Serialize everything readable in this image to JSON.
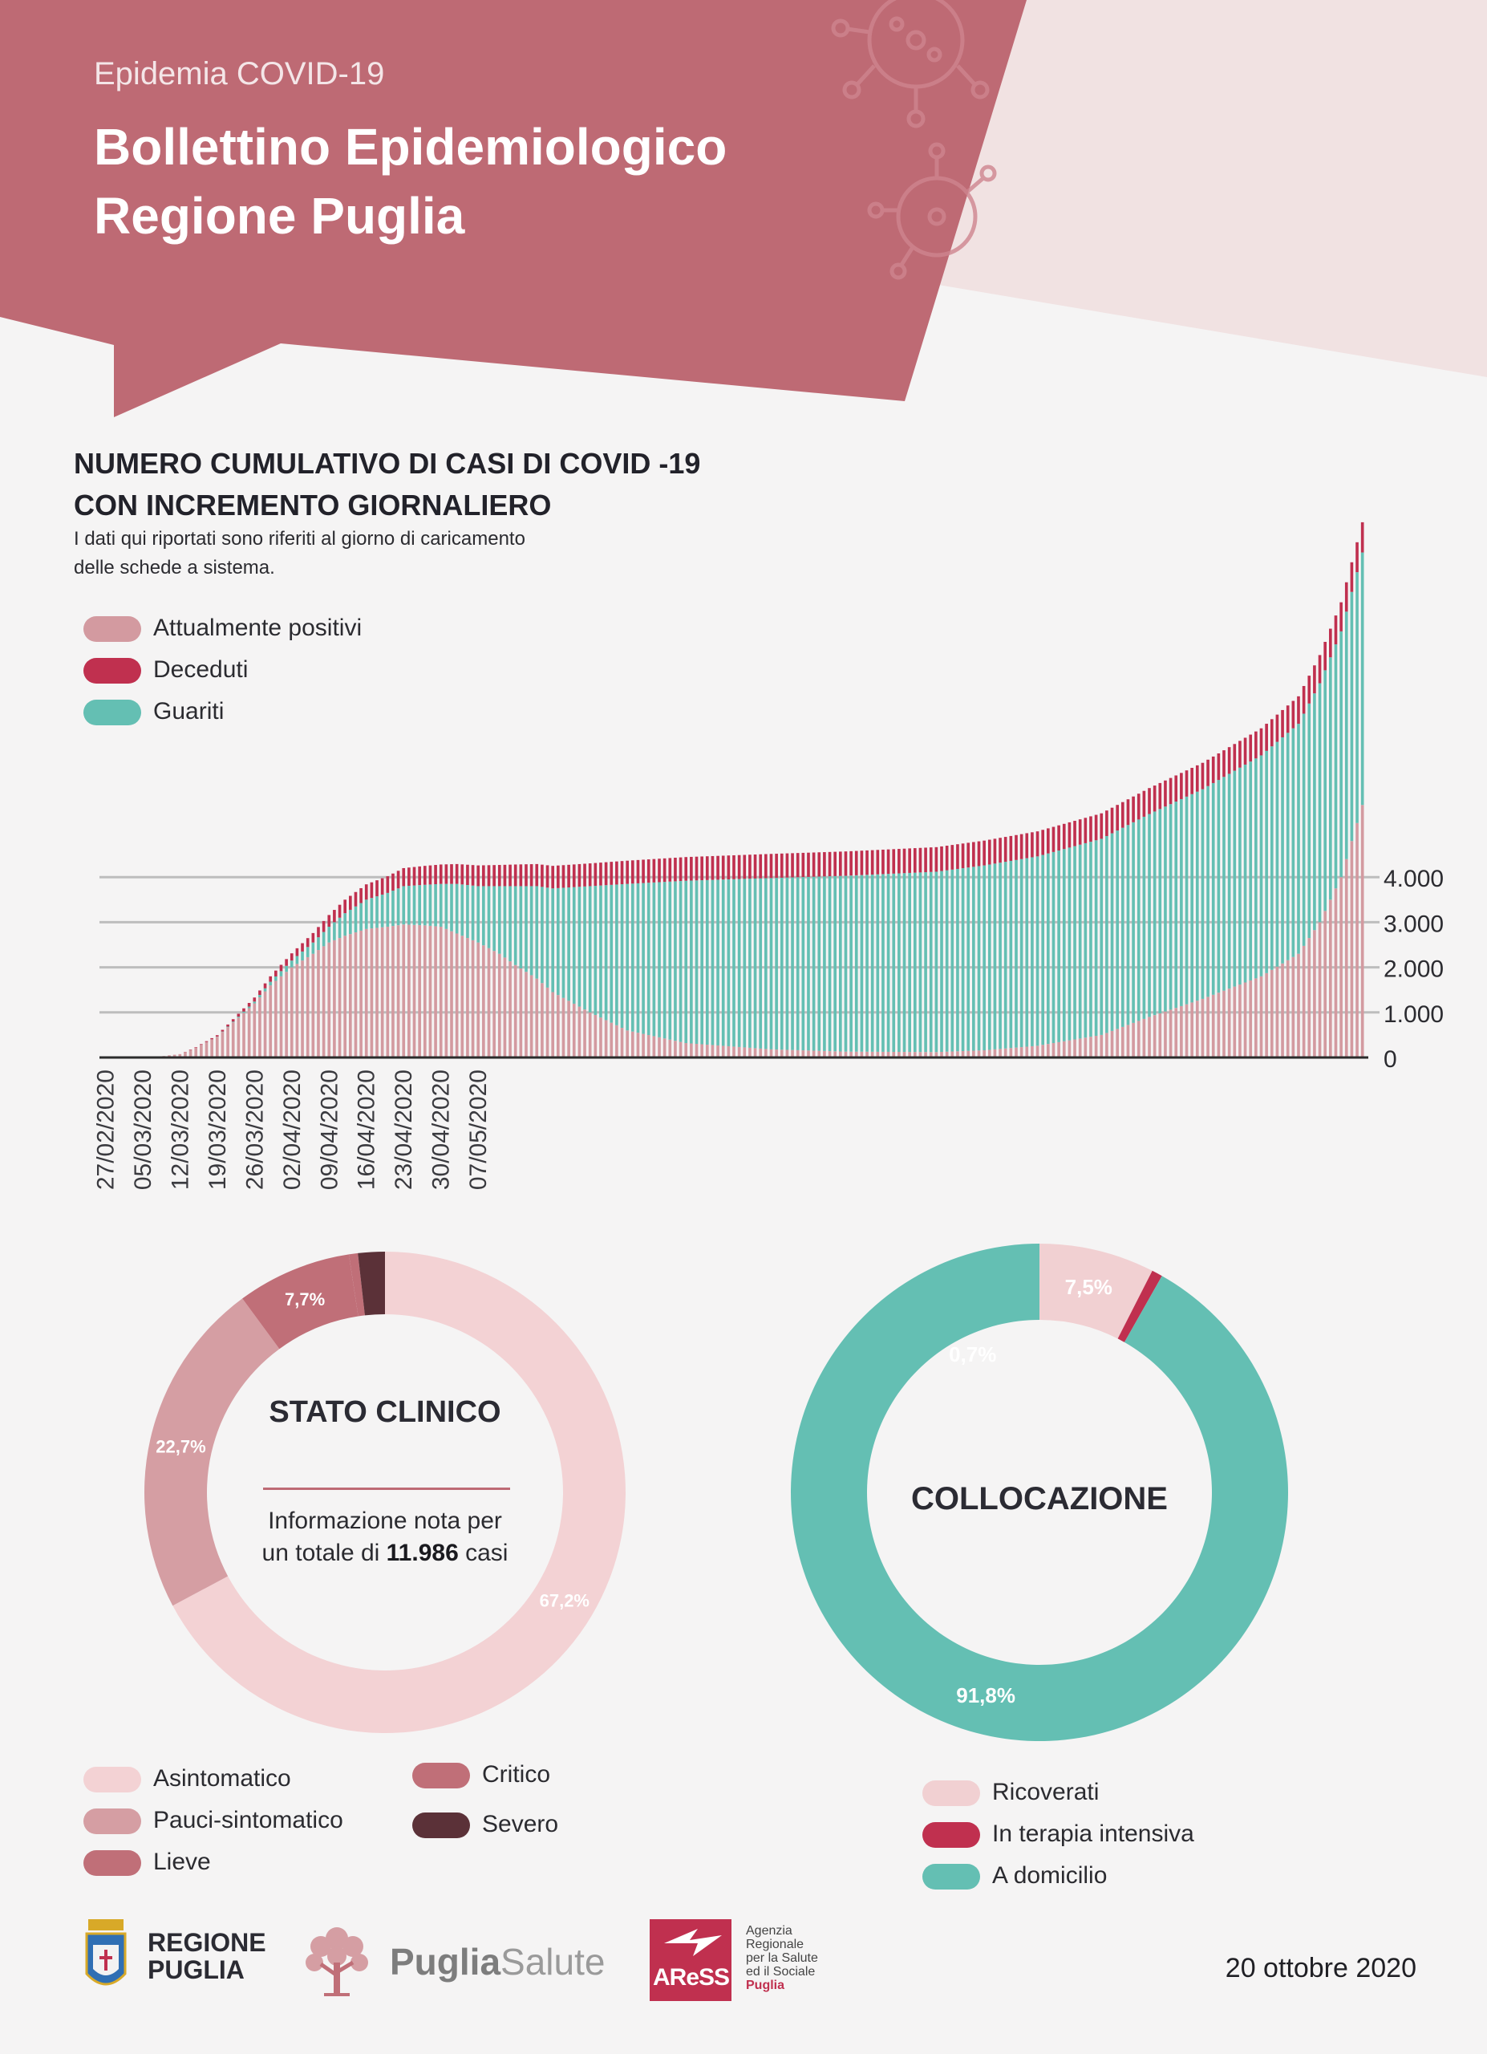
{
  "header": {
    "kicker": "Epidemia COVID-19",
    "title_line1": "Bollettino Epidemiologico",
    "title_line2": "Regione Puglia"
  },
  "colors": {
    "header_band": "#be6a74",
    "header_light": "#f1e2e2",
    "positivi": "#d39aa0",
    "deceduti": "#c0304f",
    "guariti": "#64bfb3",
    "asintomatico": "#f3d2d4",
    "pauci": "#d59ea3",
    "lieve": "#c06f78",
    "critico": "#c06f78",
    "severo": "#5b3138",
    "ricoverati": "#f1d0d2",
    "terapia": "#c0304f",
    "domicilio": "#64bfb3"
  },
  "section": {
    "title_line1": "NUMERO CUMULATIVO DI CASI DI COVID -19",
    "title_line2": "CON INCREMENTO GIORNALIERO",
    "subtitle_line1": "I dati qui riportati sono riferiti al giorno di caricamento",
    "subtitle_line2": "delle schede a sistema."
  },
  "chart_data": [
    {
      "type": "bar",
      "stacked": true,
      "title": "NUMERO CUMULATIVO DI CASI DI COVID -19 CON INCREMENTO GIORNALIERO",
      "x_start": "27/02/2020",
      "x_end": "20/10/2020",
      "x_tick_labels": [
        "27/02/2020",
        "05/03/2020",
        "12/03/2020",
        "19/03/2020",
        "26/03/2020",
        "02/04/2020",
        "09/04/2020",
        "16/04/2020",
        "23/04/2020",
        "30/04/2020",
        "07/05/2020"
      ],
      "y_tick_labels": [
        "0",
        "1.000",
        "2.000",
        "3.000",
        "4.000"
      ],
      "ylim": [
        0,
        12000
      ],
      "grid": true,
      "legend_position": "top-left",
      "series_names": [
        "Attualmente positivi",
        "Deceduti",
        "Guariti"
      ],
      "keyframes_x": [
        "27/02/2020",
        "02/03/2020",
        "05/03/2020",
        "08/03/2020",
        "12/03/2020",
        "15/03/2020",
        "19/03/2020",
        "22/03/2020",
        "26/03/2020",
        "29/03/2020",
        "02/04/2020",
        "06/04/2020",
        "09/04/2020",
        "12/04/2020",
        "16/04/2020",
        "20/04/2020",
        "23/04/2020",
        "27/04/2020",
        "30/04/2020",
        "03/05/2020",
        "07/05/2020",
        "11/05/2020",
        "14/05/2020",
        "18/05/2020",
        "21/05/2020",
        "28/05/2020",
        "04/06/2020",
        "15/06/2020",
        "01/07/2020",
        "15/07/2020",
        "01/08/2020",
        "10/08/2020",
        "20/08/2020",
        "01/09/2020",
        "10/09/2020",
        "20/09/2020",
        "01/10/2020",
        "08/10/2020",
        "12/10/2020",
        "16/10/2020",
        "20/10/2020"
      ],
      "keyframes_positivi": [
        0,
        0,
        0,
        20,
        70,
        220,
        460,
        780,
        1200,
        1600,
        2000,
        2300,
        2550,
        2700,
        2850,
        2900,
        2950,
        2930,
        2900,
        2750,
        2550,
        2300,
        2050,
        1750,
        1450,
        1000,
        600,
        320,
        180,
        130,
        120,
        160,
        260,
        500,
        900,
        1300,
        1800,
        2300,
        3000,
        4000,
        5600
      ],
      "keyframes_deceduti": [
        0,
        0,
        0,
        0,
        3,
        10,
        30,
        55,
        90,
        120,
        160,
        210,
        260,
        300,
        340,
        370,
        400,
        420,
        430,
        440,
        460,
        470,
        480,
        490,
        500,
        505,
        515,
        525,
        535,
        540,
        545,
        550,
        555,
        565,
        575,
        585,
        600,
        610,
        625,
        645,
        670
      ],
      "keyframes_guariti": [
        0,
        0,
        0,
        0,
        0,
        0,
        5,
        15,
        40,
        80,
        150,
        250,
        350,
        500,
        650,
        750,
        850,
        900,
        950,
        1100,
        1250,
        1500,
        1750,
        2050,
        2300,
        2800,
        3250,
        3600,
        3800,
        3900,
        4000,
        4100,
        4200,
        4350,
        4500,
        4650,
        4900,
        5100,
        5300,
        5450,
        5600
      ]
    },
    {
      "type": "pie",
      "title": "STATO CLINICO",
      "note_line1": "Informazione nota per",
      "note_prefix": "un totale di",
      "note_total": "11.986",
      "note_suffix": "casi",
      "labels": [
        "Asintomatico",
        "Pauci-sintomatico",
        "Lieve",
        "Critico",
        "Severo"
      ],
      "values": [
        67.2,
        22.7,
        7.7,
        0.6,
        1.8
      ],
      "value_labels": [
        "67,2%",
        "22,7%",
        "7,7%",
        "",
        ""
      ]
    },
    {
      "type": "pie",
      "title": "COLLOCAZIONE",
      "labels": [
        "Ricoverati",
        "In terapia intensiva",
        "A domicilio"
      ],
      "values": [
        7.5,
        0.7,
        91.8
      ],
      "value_labels": [
        "7,5%",
        "0,7%",
        "91,8%"
      ]
    }
  ],
  "logos": {
    "regione_line1": "REGIONE",
    "regione_line2": "PUGLIA",
    "puglia": "Puglia",
    "salute": "Salute",
    "aress": "AReSS",
    "aress_lines": [
      "Agenzia",
      "Regionale",
      "per la Salute",
      "ed il Sociale",
      "Puglia"
    ]
  },
  "footer": {
    "date": "20 ottobre 2020"
  }
}
